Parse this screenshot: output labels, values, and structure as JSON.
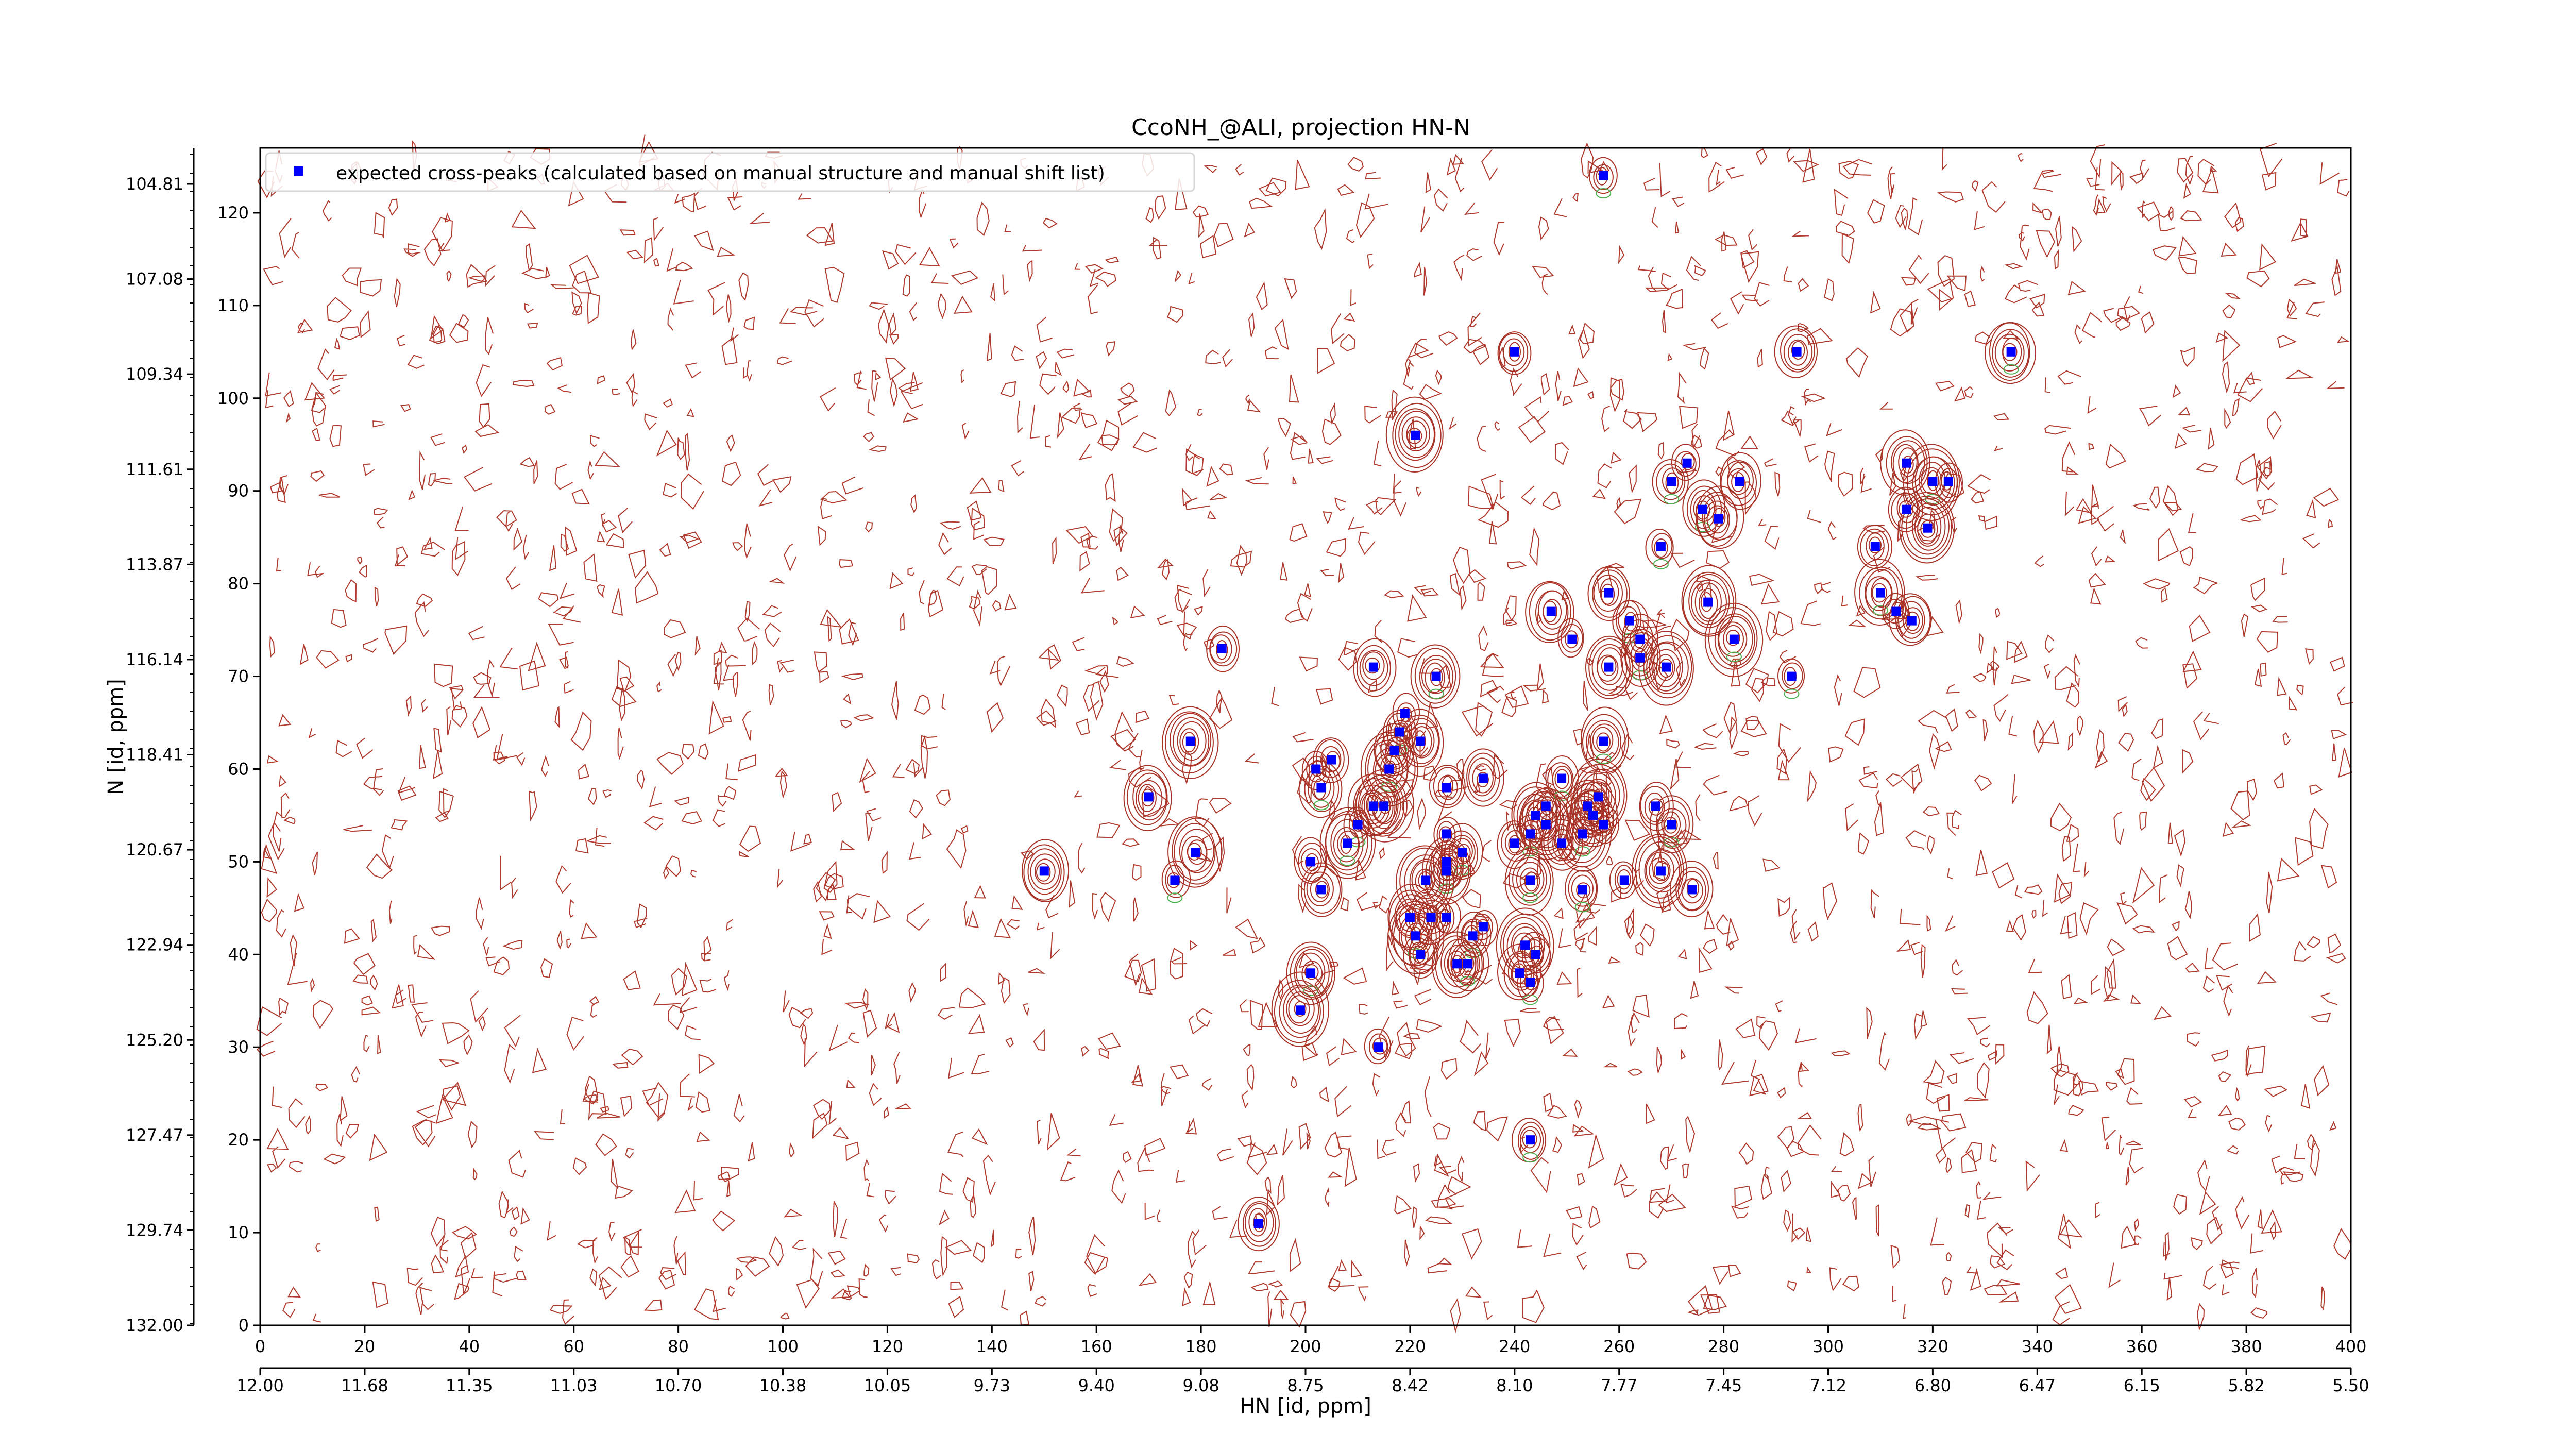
{
  "chart_data": {
    "type": "scatter",
    "title": "CcoNH_@ALI, projection HN-N",
    "xlabel": "HN [id, ppm]",
    "ylabel": "N [id, ppm]",
    "xlim": [
      0,
      400
    ],
    "ylim": [
      0,
      127
    ],
    "x_ticks": [
      "0",
      "20",
      "40",
      "60",
      "80",
      "100",
      "120",
      "140",
      "160",
      "180",
      "200",
      "220",
      "240",
      "260",
      "280",
      "300",
      "320",
      "340",
      "360",
      "380",
      "400"
    ],
    "y_ticks": [
      "0",
      "10",
      "20",
      "30",
      "40",
      "50",
      "60",
      "70",
      "80",
      "90",
      "100",
      "110",
      "120"
    ],
    "x_ppm_ticks": [
      "12.00",
      "11.68",
      "11.35",
      "11.03",
      "10.70",
      "10.38",
      "10.05",
      "9.73",
      "9.40",
      "9.08",
      "8.75",
      "8.42",
      "8.10",
      "7.77",
      "7.45",
      "7.12",
      "6.80",
      "6.47",
      "6.15",
      "5.82",
      "5.50"
    ],
    "y_ppm_ticks": [
      "104.81",
      "107.08",
      "109.34",
      "111.61",
      "113.87",
      "116.14",
      "118.41",
      "120.67",
      "122.94",
      "125.20",
      "127.47",
      "129.74",
      "132.00"
    ],
    "y_ppm_top": "104.81",
    "legend": {
      "position": "top-left",
      "label": "expected cross-peaks (calculated based on manual structure and manual shift list)"
    },
    "series": [
      {
        "name": "expected cross-peaks (calculated based on manual structure and manual shift list)",
        "color": "#0000ff",
        "marker": "square",
        "points": [
          [
            257,
            124
          ],
          [
            240,
            105
          ],
          [
            294,
            105
          ],
          [
            335,
            105
          ],
          [
            221,
            96
          ],
          [
            273,
            93
          ],
          [
            270,
            91
          ],
          [
            283,
            91
          ],
          [
            315,
            93
          ],
          [
            320,
            91
          ],
          [
            323,
            91
          ],
          [
            315,
            88
          ],
          [
            276,
            88
          ],
          [
            279,
            87
          ],
          [
            319,
            86
          ],
          [
            268,
            84
          ],
          [
            309,
            84
          ],
          [
            258,
            79
          ],
          [
            310,
            79
          ],
          [
            277,
            78
          ],
          [
            313,
            77
          ],
          [
            262,
            76
          ],
          [
            316,
            76
          ],
          [
            247,
            77
          ],
          [
            282,
            74
          ],
          [
            251,
            74
          ],
          [
            264,
            74
          ],
          [
            264,
            72
          ],
          [
            258,
            71
          ],
          [
            269,
            71
          ],
          [
            293,
            70
          ],
          [
            184,
            73
          ],
          [
            213,
            71
          ],
          [
            225,
            70
          ],
          [
            178,
            63
          ],
          [
            219,
            66
          ],
          [
            218,
            64
          ],
          [
            217,
            62
          ],
          [
            222,
            63
          ],
          [
            216,
            60
          ],
          [
            202,
            60
          ],
          [
            205,
            61
          ],
          [
            203,
            58
          ],
          [
            213,
            56
          ],
          [
            215,
            56
          ],
          [
            210,
            54
          ],
          [
            227,
            58
          ],
          [
            234,
            59
          ],
          [
            257,
            63
          ],
          [
            256,
            57
          ],
          [
            246,
            56
          ],
          [
            249,
            59
          ],
          [
            254,
            56
          ],
          [
            255,
            55
          ],
          [
            253,
            53
          ],
          [
            257,
            54
          ],
          [
            267,
            56
          ],
          [
            270,
            54
          ],
          [
            244,
            55
          ],
          [
            246,
            54
          ],
          [
            243,
            53
          ],
          [
            240,
            52
          ],
          [
            249,
            52
          ],
          [
            243,
            48
          ],
          [
            268,
            49
          ],
          [
            261,
            48
          ],
          [
            253,
            47
          ],
          [
            274,
            47
          ],
          [
            170,
            57
          ],
          [
            208,
            52
          ],
          [
            227,
            53
          ],
          [
            227,
            50
          ],
          [
            230,
            51
          ],
          [
            150,
            49
          ],
          [
            179,
            51
          ],
          [
            175,
            48
          ],
          [
            201,
            50
          ],
          [
            203,
            47
          ],
          [
            227,
            49
          ],
          [
            223,
            48
          ],
          [
            234,
            43
          ],
          [
            232,
            42
          ],
          [
            224,
            44
          ],
          [
            220,
            44
          ],
          [
            221,
            42
          ],
          [
            227,
            44
          ],
          [
            222,
            40
          ],
          [
            231,
            39
          ],
          [
            229,
            39
          ],
          [
            242,
            41
          ],
          [
            243,
            37
          ],
          [
            244,
            40
          ],
          [
            241,
            38
          ],
          [
            201,
            38
          ],
          [
            199,
            34
          ],
          [
            214,
            30
          ],
          [
            243,
            20
          ],
          [
            191,
            11
          ]
        ]
      }
    ]
  }
}
